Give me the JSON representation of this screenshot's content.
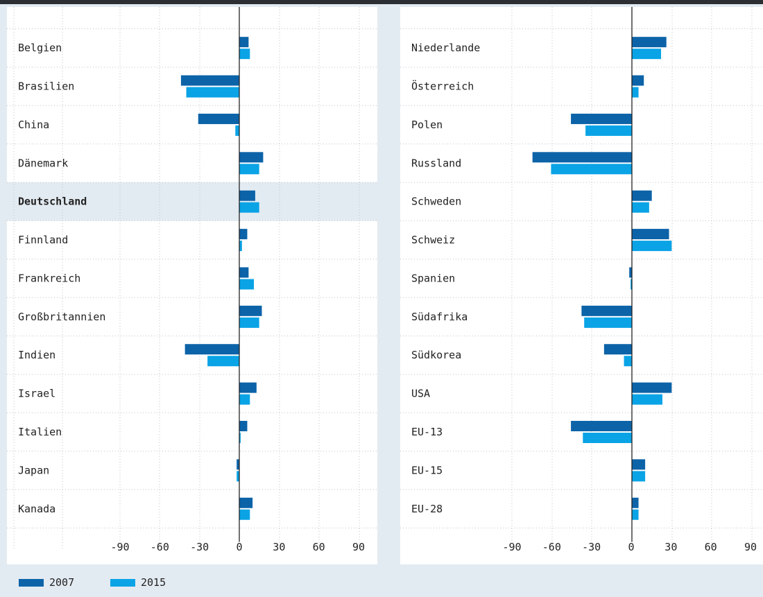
{
  "chart_data": {
    "type": "bar",
    "orientation": "horizontal",
    "xlim": [
      -115,
      100
    ],
    "x_ticks": [
      "-90",
      "-60",
      "-30",
      "0",
      "30",
      "60",
      "90"
    ],
    "colors": {
      "2007": "#0c63a8",
      "2015": "#0aa3e6",
      "highlight": "#e3ebf2"
    },
    "highlight_category": "Deutschland",
    "series": [
      {
        "name": "2007"
      },
      {
        "name": "2015"
      }
    ],
    "panels": [
      {
        "categories": [
          "Belgien",
          "Brasilien",
          "China",
          "Dänemark",
          "Deutschland",
          "Finnland",
          "Frankreich",
          "Großbritannien",
          "Indien",
          "Israel",
          "Italien",
          "Japan",
          "Kanada"
        ],
        "values_2007": [
          7,
          -44,
          -31,
          18,
          12,
          6,
          7,
          17,
          -41,
          13,
          6,
          -2,
          10
        ],
        "values_2015": [
          8,
          -40,
          -3,
          15,
          15,
          2,
          11,
          15,
          -24,
          8,
          1,
          -2,
          8
        ]
      },
      {
        "categories": [
          "Niederlande",
          "Österreich",
          "Polen",
          "Russland",
          "Schweden",
          "Schweiz",
          "Spanien",
          "Südafrika",
          "Südkorea",
          "USA",
          "EU-13",
          "EU-15",
          "EU-28"
        ],
        "values_2007": [
          26,
          9,
          -46,
          -75,
          15,
          28,
          -2,
          -38,
          -21,
          30,
          -46,
          10,
          5
        ],
        "values_2015": [
          22,
          5,
          -35,
          -61,
          13,
          30,
          -1,
          -36,
          -6,
          23,
          -37,
          10,
          5
        ]
      }
    ]
  }
}
